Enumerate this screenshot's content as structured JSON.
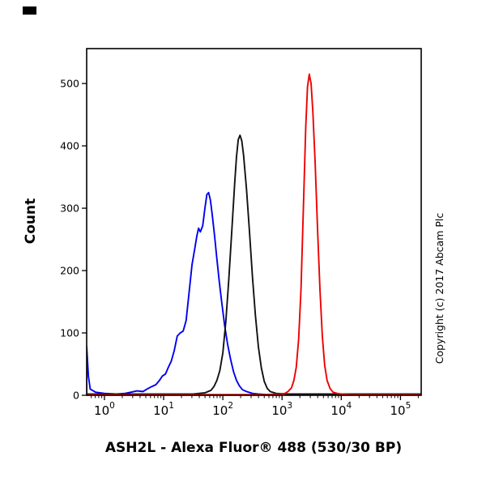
{
  "copyright_notice": "Copyright (c) 2017 Abcam Plc",
  "chart_data": {
    "type": "line",
    "subtype": "flow-cytometry-histogram-overlay",
    "title": "ASH2L - Alexa Fluor® 488 (530/30 BP)",
    "xlabel": "",
    "ylabel": "Count",
    "x_scale": "log10",
    "x_log_domain": [
      -0.3,
      5.35
    ],
    "y_domain": [
      0,
      556
    ],
    "x_tick_exponents": [
      0,
      1,
      2,
      3,
      4,
      5
    ],
    "x_tick_base": "10",
    "y_ticks": [
      0,
      100,
      200,
      300,
      400,
      500
    ],
    "grid": false,
    "legend": "none",
    "frame_color": "#000000",
    "series": [
      {
        "name": "blue-curve",
        "color": "#0000ee",
        "peak_x_log": 1.76,
        "peak_count": 325,
        "points": [
          [
            -0.3,
            0
          ],
          [
            -0.3,
            78
          ],
          [
            -0.27,
            30
          ],
          [
            -0.24,
            10
          ],
          [
            -0.15,
            5
          ],
          [
            0,
            3
          ],
          [
            0.2,
            2
          ],
          [
            0.35,
            3
          ],
          [
            0.45,
            5
          ],
          [
            0.55,
            7
          ],
          [
            0.65,
            6
          ],
          [
            0.72,
            10
          ],
          [
            0.8,
            14
          ],
          [
            0.87,
            17
          ],
          [
            0.93,
            24
          ],
          [
            0.98,
            31
          ],
          [
            1.03,
            34
          ],
          [
            1.08,
            45
          ],
          [
            1.13,
            55
          ],
          [
            1.18,
            72
          ],
          [
            1.23,
            95
          ],
          [
            1.28,
            100
          ],
          [
            1.33,
            103
          ],
          [
            1.38,
            120
          ],
          [
            1.43,
            165
          ],
          [
            1.48,
            210
          ],
          [
            1.52,
            232
          ],
          [
            1.56,
            255
          ],
          [
            1.59,
            268
          ],
          [
            1.62,
            262
          ],
          [
            1.66,
            272
          ],
          [
            1.7,
            302
          ],
          [
            1.73,
            322
          ],
          [
            1.76,
            325
          ],
          [
            1.79,
            313
          ],
          [
            1.82,
            290
          ],
          [
            1.86,
            256
          ],
          [
            1.9,
            218
          ],
          [
            1.94,
            182
          ],
          [
            1.98,
            150
          ],
          [
            2.03,
            112
          ],
          [
            2.08,
            82
          ],
          [
            2.13,
            58
          ],
          [
            2.18,
            38
          ],
          [
            2.23,
            24
          ],
          [
            2.28,
            15
          ],
          [
            2.33,
            9
          ],
          [
            2.4,
            6
          ],
          [
            2.5,
            3
          ],
          [
            2.6,
            2
          ],
          [
            2.75,
            1
          ],
          [
            3,
            1
          ]
        ]
      },
      {
        "name": "black-curve",
        "color": "#111111",
        "peak_x_log": 2.29,
        "peak_count": 417,
        "points": [
          [
            -0.3,
            2
          ],
          [
            0.5,
            2
          ],
          [
            1.2,
            2
          ],
          [
            1.5,
            2
          ],
          [
            1.6,
            3
          ],
          [
            1.7,
            4
          ],
          [
            1.8,
            8
          ],
          [
            1.85,
            14
          ],
          [
            1.9,
            24
          ],
          [
            1.95,
            40
          ],
          [
            2,
            68
          ],
          [
            2.05,
            118
          ],
          [
            2.1,
            185
          ],
          [
            2.15,
            262
          ],
          [
            2.2,
            340
          ],
          [
            2.23,
            382
          ],
          [
            2.26,
            410
          ],
          [
            2.29,
            417
          ],
          [
            2.32,
            408
          ],
          [
            2.35,
            385
          ],
          [
            2.4,
            330
          ],
          [
            2.45,
            262
          ],
          [
            2.5,
            190
          ],
          [
            2.55,
            128
          ],
          [
            2.6,
            78
          ],
          [
            2.65,
            44
          ],
          [
            2.7,
            22
          ],
          [
            2.75,
            11
          ],
          [
            2.8,
            6
          ],
          [
            2.9,
            3
          ],
          [
            3.1,
            2
          ],
          [
            3.5,
            2
          ],
          [
            4,
            2
          ],
          [
            4.5,
            2
          ],
          [
            5,
            2
          ],
          [
            5.35,
            2
          ]
        ]
      },
      {
        "name": "red-curve",
        "color": "#ee0000",
        "peak_x_log": 3.46,
        "peak_count": 515,
        "points": [
          [
            -0.3,
            1
          ],
          [
            0.8,
            1
          ],
          [
            2,
            1
          ],
          [
            2.7,
            1
          ],
          [
            2.95,
            2
          ],
          [
            3.05,
            3
          ],
          [
            3.1,
            6
          ],
          [
            3.16,
            12
          ],
          [
            3.2,
            24
          ],
          [
            3.24,
            45
          ],
          [
            3.28,
            90
          ],
          [
            3.32,
            170
          ],
          [
            3.36,
            300
          ],
          [
            3.4,
            430
          ],
          [
            3.43,
            495
          ],
          [
            3.46,
            515
          ],
          [
            3.49,
            500
          ],
          [
            3.52,
            455
          ],
          [
            3.56,
            370
          ],
          [
            3.6,
            265
          ],
          [
            3.64,
            170
          ],
          [
            3.68,
            95
          ],
          [
            3.72,
            48
          ],
          [
            3.76,
            24
          ],
          [
            3.81,
            11
          ],
          [
            3.86,
            5
          ],
          [
            3.93,
            3
          ],
          [
            4,
            2
          ],
          [
            4.15,
            1
          ],
          [
            4.6,
            1
          ],
          [
            5,
            1
          ],
          [
            5.35,
            1
          ]
        ]
      }
    ]
  }
}
